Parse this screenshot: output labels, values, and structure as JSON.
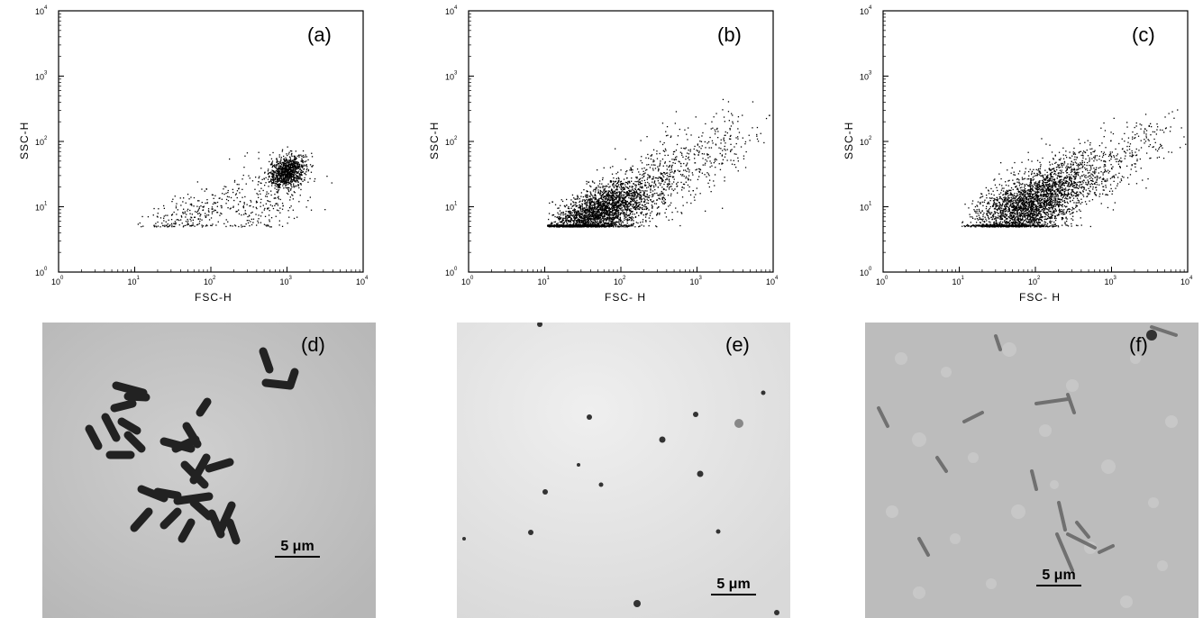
{
  "figure": {
    "scatter_panels": [
      {
        "id": "a",
        "label": "(a)",
        "xlabel": "FSC-H",
        "ylabel": "SSC-H"
      },
      {
        "id": "b",
        "label": "(b)",
        "xlabel": "FSC- H",
        "ylabel": "SSC-H"
      },
      {
        "id": "c",
        "label": "(c)",
        "xlabel": "FSC- H",
        "ylabel": "SSC-H"
      }
    ],
    "image_panels": [
      {
        "id": "d",
        "label": "(d)",
        "scale_bar": "5 μm",
        "content": "rod-shaped bacteria"
      },
      {
        "id": "e",
        "label": "(e)",
        "scale_bar": "5 μm",
        "content": "small dark particles"
      },
      {
        "id": "f",
        "label": "(f)",
        "scale_bar": "5 μm",
        "content": "cell debris"
      }
    ],
    "tick_base": "10",
    "tick_exponents": [
      "0",
      "1",
      "2",
      "3",
      "4"
    ],
    "colors": {
      "points": "#000000",
      "micro_d_bg": "#c4c4c4",
      "micro_e_bg": "#e6e6e6",
      "micro_f_bg": "#b9b9b9"
    }
  },
  "chart_data": [
    {
      "type": "scatter",
      "title": "",
      "panel": "(a)",
      "xlabel": "FSC-H",
      "ylabel": "SSC-H",
      "xscale": "log",
      "yscale": "log",
      "xlim": [
        1,
        10000
      ],
      "ylim": [
        1,
        10000
      ],
      "clusters": [
        {
          "center": [
            1000,
            35
          ],
          "spread_log": [
            0.12,
            0.12
          ],
          "count": 900
        },
        {
          "center": [
            450,
            12
          ],
          "spread_log": [
            0.35,
            0.3
          ],
          "count": 250
        },
        {
          "center": [
            50,
            8
          ],
          "spread_log": [
            0.3,
            0.15
          ],
          "count": 220
        }
      ]
    },
    {
      "type": "scatter",
      "title": "",
      "panel": "(b)",
      "xlabel": "FSC- H",
      "ylabel": "SSC-H",
      "xscale": "log",
      "yscale": "log",
      "xlim": [
        1,
        10000
      ],
      "ylim": [
        1,
        10000
      ],
      "clusters": [
        {
          "center": [
            50,
            8
          ],
          "spread_log": [
            0.35,
            0.2
          ],
          "count": 2600
        },
        {
          "center": [
            300,
            25
          ],
          "spread_log": [
            0.4,
            0.3
          ],
          "count": 500
        },
        {
          "center": [
            2000,
            90
          ],
          "spread_log": [
            0.3,
            0.25
          ],
          "count": 150
        }
      ]
    },
    {
      "type": "scatter",
      "title": "",
      "panel": "(c)",
      "xlabel": "FSC- H",
      "ylabel": "SSC-H",
      "xscale": "log",
      "yscale": "log",
      "xlim": [
        1,
        10000
      ],
      "ylim": [
        1,
        10000
      ],
      "clusters": [
        {
          "center": [
            80,
            10
          ],
          "spread_log": [
            0.35,
            0.25
          ],
          "count": 2600
        },
        {
          "center": [
            400,
            30
          ],
          "spread_log": [
            0.35,
            0.25
          ],
          "count": 500
        },
        {
          "center": [
            2500,
            90
          ],
          "spread_log": [
            0.3,
            0.2
          ],
          "count": 120
        }
      ]
    }
  ]
}
